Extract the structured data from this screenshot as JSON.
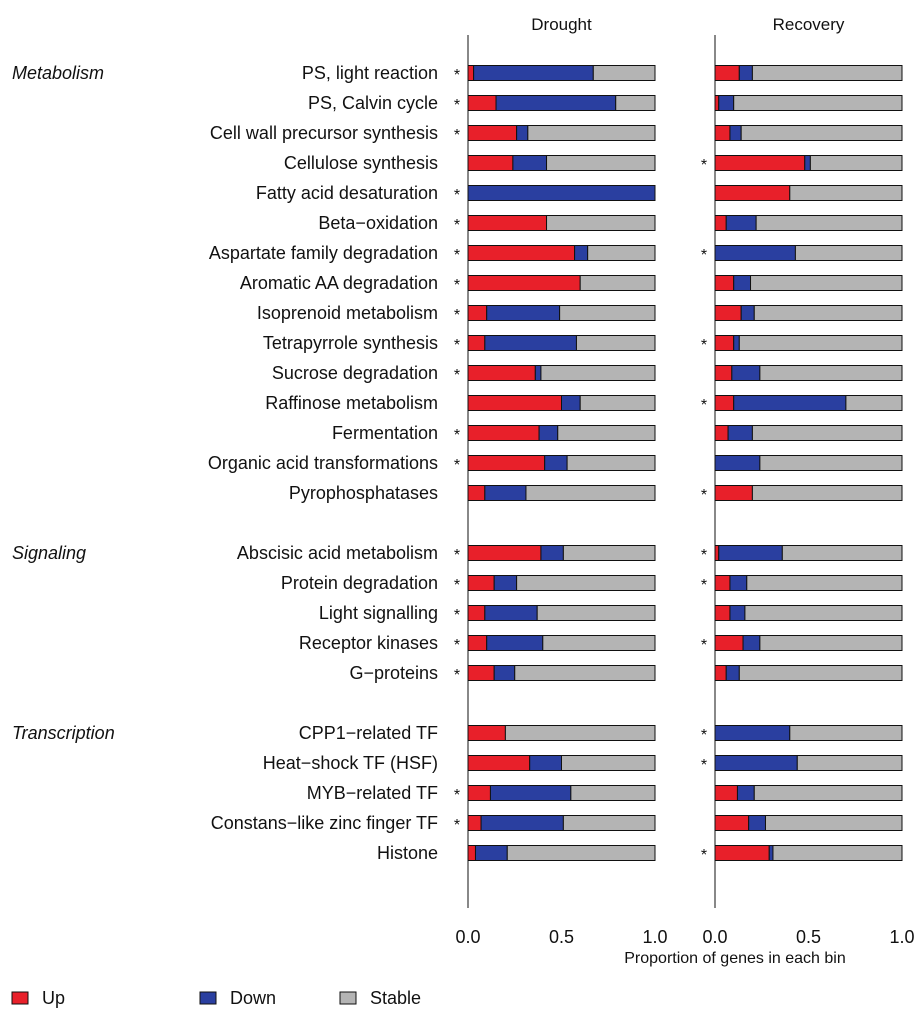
{
  "chart_data": {
    "type": "bar",
    "orientation": "horizontal",
    "stacked": true,
    "panels": [
      "Drought",
      "Recovery"
    ],
    "xlabel": "Proportion of genes in each bin",
    "xlim": [
      0,
      1
    ],
    "xticks": [
      "0.0",
      "0.5",
      "1.0"
    ],
    "legend": {
      "placement": "bottom-left",
      "entries": [
        {
          "key": "up",
          "label": "Up",
          "color": "#e8202a"
        },
        {
          "key": "down",
          "label": "Down",
          "color": "#2a3fa0"
        },
        {
          "key": "stable",
          "label": "Stable",
          "color": "#b4b4b4"
        }
      ]
    },
    "colors": {
      "up": "#e8202a",
      "down": "#2a3fa0",
      "stable": "#b4b4b4"
    },
    "groups": [
      {
        "name": "Metabolism",
        "rows": [
          {
            "label": "PS, light reaction",
            "drought": {
              "up": 0.03,
              "down": 0.64,
              "sig": true
            },
            "recovery": {
              "up": 0.13,
              "down": 0.07,
              "sig": false
            }
          },
          {
            "label": "PS, Calvin cycle",
            "drought": {
              "up": 0.15,
              "down": 0.64,
              "sig": true
            },
            "recovery": {
              "up": 0.02,
              "down": 0.08,
              "sig": false
            }
          },
          {
            "label": "Cell wall precursor synthesis",
            "drought": {
              "up": 0.26,
              "down": 0.06,
              "sig": true
            },
            "recovery": {
              "up": 0.08,
              "down": 0.06,
              "sig": false
            }
          },
          {
            "label": "Cellulose synthesis",
            "drought": {
              "up": 0.24,
              "down": 0.18,
              "sig": false
            },
            "recovery": {
              "up": 0.48,
              "down": 0.03,
              "sig": true
            }
          },
          {
            "label": "Fatty acid desaturation",
            "drought": {
              "up": 0.0,
              "down": 1.0,
              "sig": true
            },
            "recovery": {
              "up": 0.4,
              "down": 0.0,
              "sig": false
            }
          },
          {
            "label": "Beta−oxidation",
            "drought": {
              "up": 0.42,
              "down": 0.0,
              "sig": true
            },
            "recovery": {
              "up": 0.06,
              "down": 0.16,
              "sig": false
            }
          },
          {
            "label": "Aspartate family degradation",
            "drought": {
              "up": 0.57,
              "down": 0.07,
              "sig": true
            },
            "recovery": {
              "up": 0.0,
              "down": 0.43,
              "sig": true
            }
          },
          {
            "label": "Aromatic AA degradation",
            "drought": {
              "up": 0.6,
              "down": 0.0,
              "sig": true
            },
            "recovery": {
              "up": 0.1,
              "down": 0.09,
              "sig": false
            }
          },
          {
            "label": "Isoprenoid metabolism",
            "drought": {
              "up": 0.1,
              "down": 0.39,
              "sig": true
            },
            "recovery": {
              "up": 0.14,
              "down": 0.07,
              "sig": false
            }
          },
          {
            "label": "Tetrapyrrole synthesis",
            "drought": {
              "up": 0.09,
              "down": 0.49,
              "sig": true
            },
            "recovery": {
              "up": 0.1,
              "down": 0.03,
              "sig": true
            }
          },
          {
            "label": "Sucrose degradation",
            "drought": {
              "up": 0.36,
              "down": 0.03,
              "sig": true
            },
            "recovery": {
              "up": 0.09,
              "down": 0.15,
              "sig": false
            }
          },
          {
            "label": "Raffinose metabolism",
            "drought": {
              "up": 0.5,
              "down": 0.1,
              "sig": false
            },
            "recovery": {
              "up": 0.1,
              "down": 0.6,
              "sig": true
            }
          },
          {
            "label": "Fermentation",
            "drought": {
              "up": 0.38,
              "down": 0.1,
              "sig": true
            },
            "recovery": {
              "up": 0.07,
              "down": 0.13,
              "sig": false
            }
          },
          {
            "label": "Organic acid transformations",
            "drought": {
              "up": 0.41,
              "down": 0.12,
              "sig": true
            },
            "recovery": {
              "up": 0.0,
              "down": 0.24,
              "sig": false
            }
          },
          {
            "label": "Pyrophosphatases",
            "drought": {
              "up": 0.09,
              "down": 0.22,
              "sig": false
            },
            "recovery": {
              "up": 0.2,
              "down": 0.0,
              "sig": true
            }
          }
        ]
      },
      {
        "name": "Signaling",
        "rows": [
          {
            "label": "Abscisic acid metabolism",
            "drought": {
              "up": 0.39,
              "down": 0.12,
              "sig": true
            },
            "recovery": {
              "up": 0.02,
              "down": 0.34,
              "sig": true
            }
          },
          {
            "label": "Protein degradation",
            "drought": {
              "up": 0.14,
              "down": 0.12,
              "sig": true
            },
            "recovery": {
              "up": 0.08,
              "down": 0.09,
              "sig": true
            }
          },
          {
            "label": "Light signalling",
            "drought": {
              "up": 0.09,
              "down": 0.28,
              "sig": true
            },
            "recovery": {
              "up": 0.08,
              "down": 0.08,
              "sig": false
            }
          },
          {
            "label": "Receptor kinases",
            "drought": {
              "up": 0.1,
              "down": 0.3,
              "sig": true
            },
            "recovery": {
              "up": 0.15,
              "down": 0.09,
              "sig": true
            }
          },
          {
            "label": "G−proteins",
            "drought": {
              "up": 0.14,
              "down": 0.11,
              "sig": true
            },
            "recovery": {
              "up": 0.06,
              "down": 0.07,
              "sig": false
            }
          }
        ]
      },
      {
        "name": "Transcription",
        "rows": [
          {
            "label": "CPP1−related TF",
            "drought": {
              "up": 0.2,
              "down": 0.0,
              "sig": false
            },
            "recovery": {
              "up": 0.0,
              "down": 0.4,
              "sig": true
            }
          },
          {
            "label": "Heat−shock TF (HSF)",
            "drought": {
              "up": 0.33,
              "down": 0.17,
              "sig": false
            },
            "recovery": {
              "up": 0.0,
              "down": 0.44,
              "sig": true
            }
          },
          {
            "label": "MYB−related TF",
            "drought": {
              "up": 0.12,
              "down": 0.43,
              "sig": true
            },
            "recovery": {
              "up": 0.12,
              "down": 0.09,
              "sig": false
            }
          },
          {
            "label": "Constans−like zinc finger TF",
            "drought": {
              "up": 0.07,
              "down": 0.44,
              "sig": true
            },
            "recovery": {
              "up": 0.18,
              "down": 0.09,
              "sig": false
            }
          },
          {
            "label": "Histone",
            "drought": {
              "up": 0.04,
              "down": 0.17,
              "sig": false
            },
            "recovery": {
              "up": 0.29,
              "down": 0.02,
              "sig": true
            }
          }
        ]
      }
    ]
  }
}
